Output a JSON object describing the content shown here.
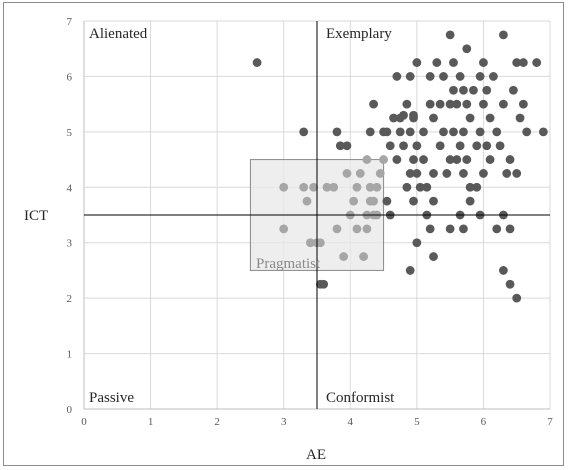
{
  "chart_data": {
    "type": "scatter",
    "xlabel": "AE",
    "ylabel": "ICT",
    "xlim": [
      0,
      7
    ],
    "ylim": [
      0,
      7
    ],
    "xticks": [
      "0",
      "1",
      "2",
      "3",
      "4",
      "5",
      "6",
      "7"
    ],
    "yticks": [
      "0",
      "1",
      "2",
      "3",
      "4",
      "5",
      "6",
      "7"
    ],
    "grid": true,
    "reference_lines": {
      "x": 3.5,
      "y": 3.5
    },
    "quadrant_labels": {
      "top_left": "Alienated",
      "top_right": "Exemplary",
      "bottom_left": "Passive",
      "bottom_right": "Conformist"
    },
    "highlight_box": {
      "label": "Pragmatist",
      "x": [
        2.5,
        4.5
      ],
      "y": [
        2.5,
        4.5
      ]
    },
    "colors": {
      "points": "#595959",
      "points_in_box": "#a6a6a6",
      "box_fill": "#e8e8e8",
      "box_edge": "#8a8a8a",
      "grid": "#d9d9d9"
    },
    "points": [
      [
        2.6,
        6.25
      ],
      [
        3.3,
        5.0
      ],
      [
        3.8,
        5.0
      ],
      [
        3.85,
        4.75
      ],
      [
        3.95,
        4.75
      ],
      [
        4.3,
        5.0
      ],
      [
        4.35,
        5.5
      ],
      [
        4.5,
        5.0
      ],
      [
        4.55,
        5.0
      ],
      [
        4.6,
        4.75
      ],
      [
        4.65,
        5.25
      ],
      [
        4.7,
        6.0
      ],
      [
        4.75,
        5.0
      ],
      [
        4.75,
        5.25
      ],
      [
        4.8,
        5.3
      ],
      [
        4.85,
        5.5
      ],
      [
        4.9,
        5.0
      ],
      [
        4.9,
        6.0
      ],
      [
        4.95,
        5.25
      ],
      [
        4.95,
        5.3
      ],
      [
        4.7,
        4.5
      ],
      [
        4.8,
        4.75
      ],
      [
        4.85,
        4.0
      ],
      [
        4.9,
        4.25
      ],
      [
        4.95,
        4.5
      ],
      [
        5.0,
        4.25
      ],
      [
        5.0,
        4.75
      ],
      [
        5.0,
        6.25
      ],
      [
        5.05,
        4.0
      ],
      [
        5.1,
        4.5
      ],
      [
        5.1,
        5.0
      ],
      [
        5.15,
        3.5
      ],
      [
        5.15,
        4.0
      ],
      [
        5.2,
        5.5
      ],
      [
        5.2,
        6.0
      ],
      [
        5.25,
        3.75
      ],
      [
        5.25,
        4.25
      ],
      [
        5.25,
        5.25
      ],
      [
        5.3,
        6.25
      ],
      [
        5.35,
        4.75
      ],
      [
        5.35,
        5.5
      ],
      [
        5.4,
        5.0
      ],
      [
        5.4,
        6.0
      ],
      [
        5.45,
        4.25
      ],
      [
        5.5,
        5.5
      ],
      [
        5.5,
        4.5
      ],
      [
        5.5,
        6.75
      ],
      [
        5.55,
        5.0
      ],
      [
        5.55,
        5.75
      ],
      [
        5.55,
        6.25
      ],
      [
        5.6,
        4.5
      ],
      [
        5.6,
        5.5
      ],
      [
        5.65,
        3.5
      ],
      [
        5.65,
        4.75
      ],
      [
        5.65,
        6.0
      ],
      [
        5.7,
        4.25
      ],
      [
        5.7,
        5.0
      ],
      [
        5.7,
        5.75
      ],
      [
        5.75,
        4.5
      ],
      [
        5.75,
        5.5
      ],
      [
        5.75,
        6.5
      ],
      [
        5.8,
        3.75
      ],
      [
        5.8,
        4.0
      ],
      [
        5.8,
        5.25
      ],
      [
        5.85,
        5.75
      ],
      [
        5.9,
        4.0
      ],
      [
        5.9,
        4.75
      ],
      [
        5.95,
        5.0
      ],
      [
        5.95,
        6.0
      ],
      [
        6.0,
        4.25
      ],
      [
        6.0,
        5.5
      ],
      [
        6.0,
        6.25
      ],
      [
        6.05,
        4.75
      ],
      [
        6.05,
        5.75
      ],
      [
        6.1,
        4.5
      ],
      [
        6.1,
        5.25
      ],
      [
        6.15,
        6.0
      ],
      [
        6.2,
        5.0
      ],
      [
        6.25,
        4.75
      ],
      [
        6.3,
        5.5
      ],
      [
        6.3,
        6.75
      ],
      [
        6.35,
        4.25
      ],
      [
        6.4,
        4.5
      ],
      [
        6.45,
        5.75
      ],
      [
        6.5,
        4.25
      ],
      [
        6.5,
        6.25
      ],
      [
        6.55,
        5.25
      ],
      [
        6.6,
        5.5
      ],
      [
        6.6,
        6.25
      ],
      [
        6.65,
        5.0
      ],
      [
        6.8,
        6.25
      ],
      [
        6.9,
        5.0
      ],
      [
        4.6,
        3.5
      ],
      [
        4.9,
        2.5
      ],
      [
        4.95,
        3.75
      ],
      [
        5.0,
        3.0
      ],
      [
        5.2,
        3.25
      ],
      [
        5.25,
        2.75
      ],
      [
        5.5,
        3.25
      ],
      [
        5.7,
        3.25
      ],
      [
        5.95,
        3.5
      ],
      [
        6.2,
        3.25
      ],
      [
        6.3,
        2.5
      ],
      [
        6.3,
        3.5
      ],
      [
        6.4,
        3.25
      ],
      [
        6.4,
        2.25
      ],
      [
        6.5,
        2.0
      ],
      [
        4.55,
        3.75
      ],
      [
        4.45,
        4.25
      ],
      [
        4.3,
        4.0
      ],
      [
        4.35,
        3.75
      ],
      [
        4.4,
        3.5
      ],
      [
        4.5,
        4.5
      ],
      [
        3.0,
        4.0
      ],
      [
        3.0,
        3.25
      ],
      [
        3.3,
        4.0
      ],
      [
        3.35,
        3.75
      ],
      [
        3.4,
        3.0
      ],
      [
        3.45,
        4.0
      ],
      [
        3.5,
        3.0
      ],
      [
        3.55,
        3.0
      ],
      [
        3.55,
        2.25
      ],
      [
        3.6,
        2.25
      ],
      [
        3.65,
        4.0
      ],
      [
        3.75,
        4.0
      ],
      [
        3.8,
        3.25
      ],
      [
        3.9,
        2.75
      ],
      [
        3.95,
        4.25
      ],
      [
        4.0,
        3.5
      ],
      [
        4.05,
        3.75
      ],
      [
        4.1,
        4.0
      ],
      [
        4.1,
        3.25
      ],
      [
        4.15,
        4.25
      ],
      [
        4.2,
        2.75
      ],
      [
        4.25,
        3.25
      ],
      [
        4.25,
        3.5
      ],
      [
        4.25,
        4.5
      ],
      [
        4.3,
        3.75
      ],
      [
        4.35,
        3.5
      ],
      [
        4.4,
        4.0
      ]
    ]
  }
}
